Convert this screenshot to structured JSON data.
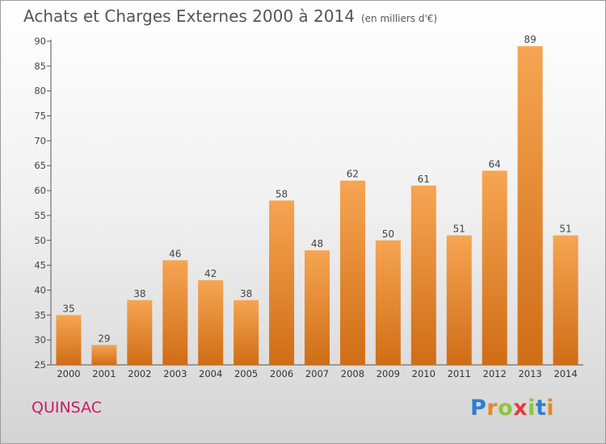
{
  "header": {
    "title": "Achats et Charges Externes 2000 à 2014",
    "unit": "(en milliers d'€)"
  },
  "footer": {
    "place": "QUINSAC",
    "logo": {
      "letters": [
        "P",
        "r",
        "o",
        "x",
        "i",
        "t",
        "i"
      ],
      "colors": [
        "#2b7fd1",
        "#e8862a",
        "#8cc63f",
        "#e33b3b",
        "#8cc63f",
        "#2b7fd1",
        "#e8862a"
      ]
    }
  },
  "chart_data": {
    "type": "bar",
    "title": "Achats et Charges Externes 2000 à 2014",
    "categories": [
      "2000",
      "2001",
      "2002",
      "2003",
      "2004",
      "2005",
      "2006",
      "2007",
      "2008",
      "2009",
      "2010",
      "2011",
      "2012",
      "2013",
      "2014"
    ],
    "values": [
      35,
      29,
      38,
      46,
      42,
      38,
      58,
      48,
      62,
      50,
      61,
      51,
      64,
      89,
      51
    ],
    "ylim": [
      25,
      90
    ],
    "yticks": [
      25,
      30,
      35,
      40,
      45,
      50,
      55,
      60,
      65,
      70,
      75,
      80,
      85,
      90
    ],
    "grid": false,
    "legend": "none",
    "bar_color_top": "#f6a552",
    "bar_color_bottom": "#d06d16"
  }
}
